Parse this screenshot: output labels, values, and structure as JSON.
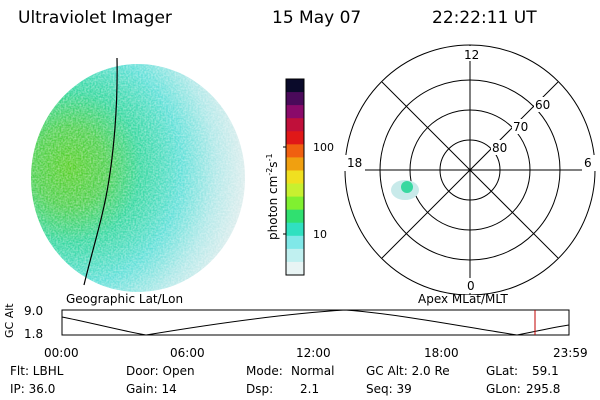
{
  "header": {
    "instrument": "Ultraviolet Imager",
    "date": "15 May 07",
    "time": "22:22:11 UT"
  },
  "image_panels": {
    "left_caption": "Geographic Lat/Lon",
    "right_caption": "Apex MLat/MLT"
  },
  "colorbar": {
    "unit_label": "photon cm",
    "unit_sup1": "-2",
    "unit_mid": "s",
    "unit_sup2": "-1",
    "ticks": [
      "100",
      "10"
    ],
    "colors": [
      "#0a0a2a",
      "#4a0a5a",
      "#8a0a6a",
      "#c0103a",
      "#e01818",
      "#f06010",
      "#f0a010",
      "#f0e020",
      "#c8f030",
      "#80f030",
      "#30e070",
      "#30e0c0",
      "#80e8e8",
      "#c0f0f0",
      "#e8f4f4"
    ]
  },
  "polar_plot": {
    "mlt_labels": {
      "top": "12",
      "left": "18",
      "right": "6",
      "bottom": "0"
    },
    "lat_labels": [
      "60",
      "70",
      "80"
    ]
  },
  "altitude_plot": {
    "ylabel": "GC Alt",
    "yticks": [
      "9.0",
      "1.8"
    ],
    "xticks": [
      "00:00",
      "06:00",
      "12:00",
      "18:00",
      "23:59"
    ],
    "marker_color": "#c00000"
  },
  "status": {
    "row1": {
      "flt": "Flt: LBHL",
      "door": "Door: Open",
      "mode_label": "Mode:",
      "mode_value": "Normal",
      "gc_alt": "GC Alt: 2.0 Re",
      "glat_label": "GLat:",
      "glat_value": "59.1"
    },
    "row2": {
      "ip": "IP: 36.0",
      "gain": "Gain: 14",
      "dsp_label": "Dsp:",
      "dsp_value": "2.1",
      "seq": "Seq: 39",
      "glon_label": "GLon:",
      "glon_value": "295.8"
    }
  }
}
